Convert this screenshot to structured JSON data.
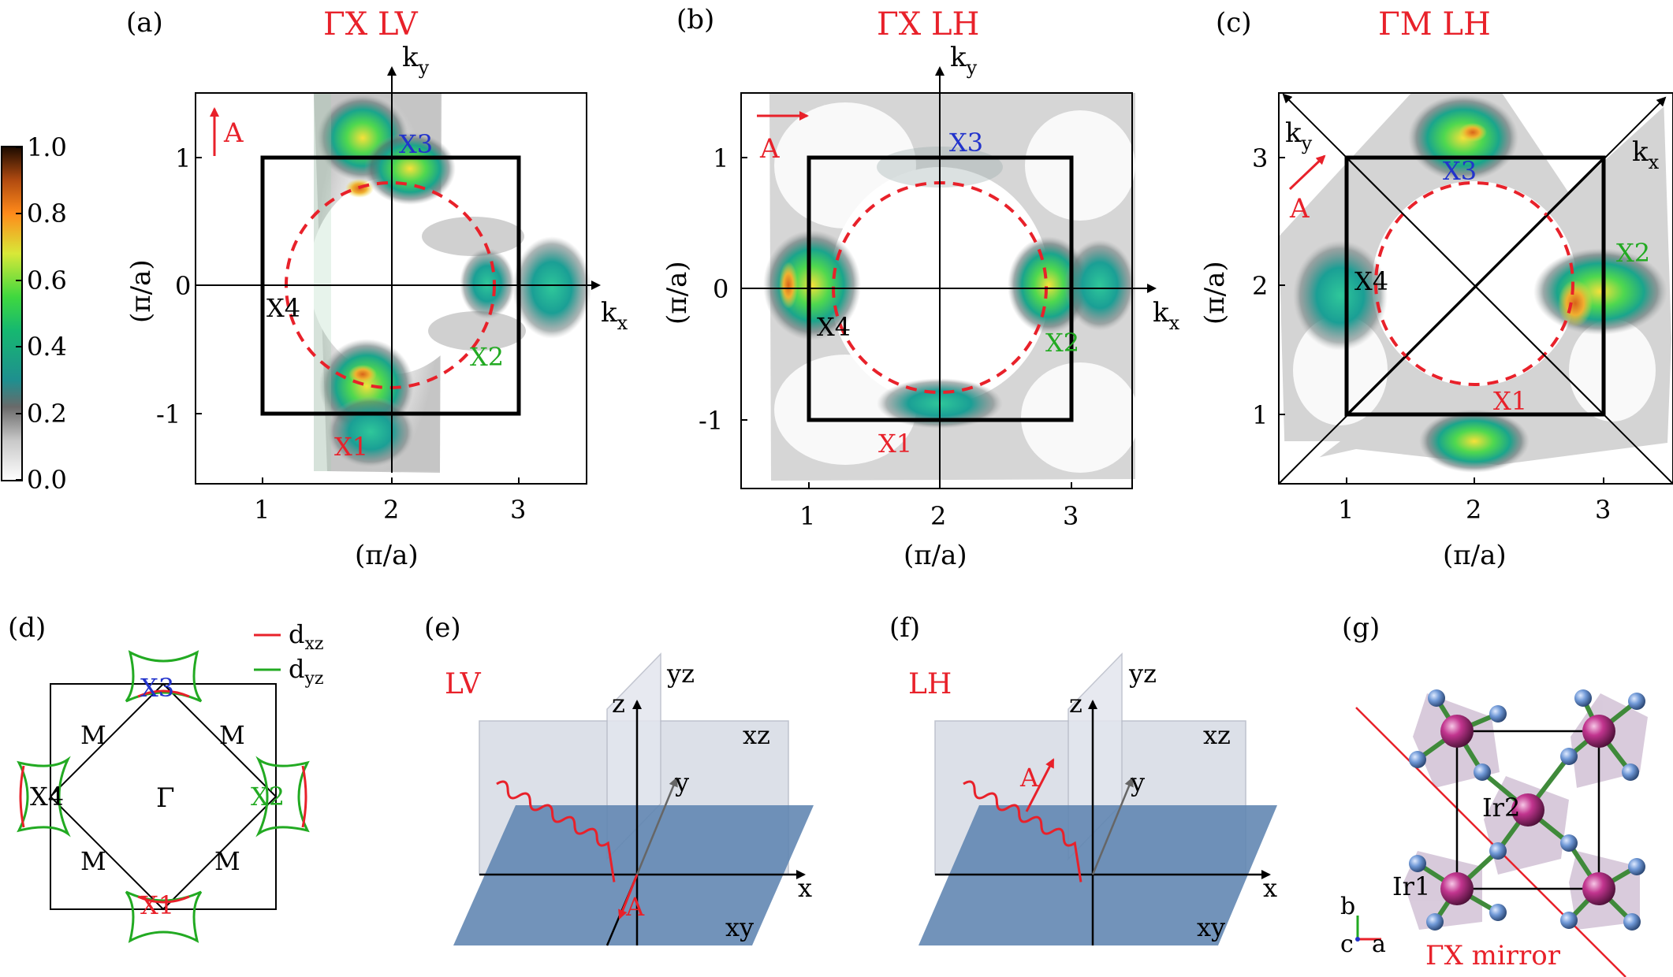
{
  "colors": {
    "red": "#e8212a",
    "blue": "#2233cc",
    "green": "#22aa22",
    "black": "#000000",
    "plane_blue": "#5f84b0",
    "plane_grey": "#d9dde6",
    "atom_pink": "#c2358f",
    "atom_blue": "#6f98d6",
    "octa": "#b9a0bf"
  },
  "colorbar": {
    "ticks": [
      "1.0",
      "0.8",
      "0.6",
      "0.4",
      "0.2",
      "0.0"
    ]
  },
  "panels": {
    "a": {
      "label": "(a)",
      "title": "ΓX LV",
      "ky": "k",
      "ky_sub": "y",
      "kx": "k",
      "kx_sub": "x",
      "pol": "A",
      "ylabel": "(π/a)",
      "xlabel": "(π/a)",
      "yticks": [
        "1",
        "0",
        "-1"
      ],
      "xticks": [
        "1",
        "2",
        "3"
      ],
      "points": {
        "X1": "X1",
        "X2": "X2",
        "X3": "X3",
        "X4": "X4"
      }
    },
    "b": {
      "label": "(b)",
      "title": "ΓX LH",
      "ky": "k",
      "ky_sub": "y",
      "kx": "k",
      "kx_sub": "x",
      "pol": "A",
      "ylabel": "(π/a)",
      "xlabel": "(π/a)",
      "yticks": [
        "1",
        "0",
        "-1"
      ],
      "xticks": [
        "1",
        "2",
        "3"
      ],
      "points": {
        "X1": "X1",
        "X2": "X2",
        "X3": "X3",
        "X4": "X4"
      }
    },
    "c": {
      "label": "(c)",
      "title": "ΓM LH",
      "ky": "k",
      "ky_sub": "y",
      "kx": "k",
      "kx_sub": "x",
      "pol": "A",
      "ylabel": "(π/a)",
      "xlabel": "(π/a)",
      "yticks": [
        "3",
        "2",
        "1"
      ],
      "xticks": [
        "1",
        "2",
        "3"
      ],
      "points": {
        "X1": "X1",
        "X2": "X2",
        "X3": "X3",
        "X4": "X4"
      }
    },
    "d": {
      "label": "(d)",
      "legend_dxz": "d",
      "legend_dxz_sub": "xz",
      "legend_dyz": "d",
      "legend_dyz_sub": "yz",
      "gamma": "Γ",
      "m": "M",
      "points": {
        "X1": "X1",
        "X2": "X2",
        "X3": "X3",
        "X4": "X4"
      }
    },
    "e": {
      "label": "(e)",
      "mode": "LV",
      "yz": "yz",
      "xz": "xz",
      "xy": "xy",
      "z": "z",
      "y": "y",
      "x": "x",
      "pol": "A"
    },
    "f": {
      "label": "(f)",
      "mode": "LH",
      "yz": "yz",
      "xz": "xz",
      "xy": "xy",
      "z": "z",
      "y": "y",
      "x": "x",
      "pol": "A"
    },
    "g": {
      "label": "(g)",
      "ir1": "Ir1",
      "ir2": "Ir2",
      "axis_b": "b",
      "axis_c": "c",
      "axis_a": "a",
      "mirror": "ΓX mirror"
    }
  }
}
